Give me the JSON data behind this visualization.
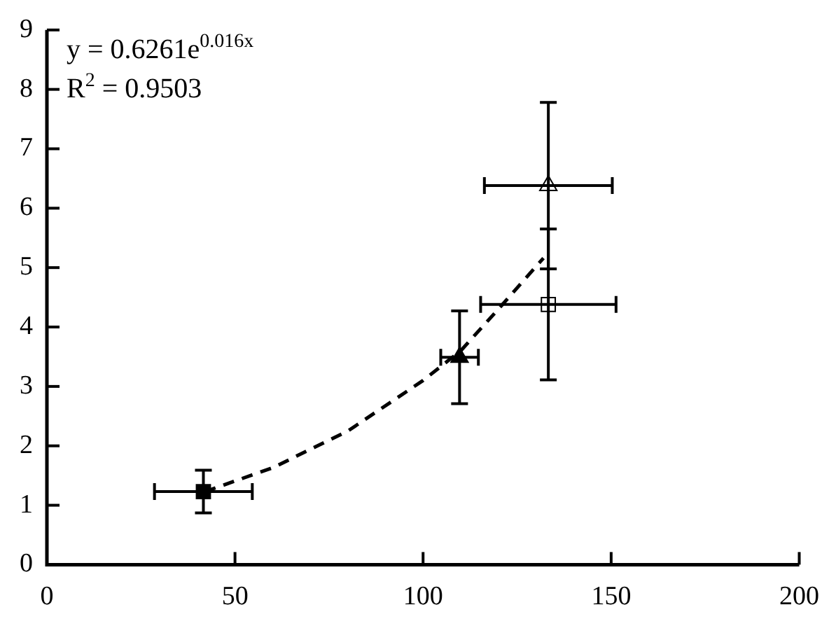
{
  "chart_data": {
    "type": "scatter",
    "xlim": [
      0,
      200
    ],
    "xticks": [
      0,
      50,
      100,
      150,
      200
    ],
    "ylim": [
      0,
      9
    ],
    "yticks": [
      0,
      1,
      2,
      3,
      4,
      5,
      6,
      7,
      8,
      9
    ],
    "grid": false,
    "legend": false,
    "annotations": [
      "y = 0.6261e$^{0.016x}$",
      "R$^{2}$ = 0.9503"
    ],
    "series": [
      {
        "type": "line",
        "color": "#000000",
        "line_style": "dashed",
        "marker": "none",
        "x": [
          42,
          60,
          80,
          100,
          110,
          120,
          132
        ],
        "values": [
          1.23,
          1.63,
          2.25,
          3.1,
          3.6,
          4.3,
          5.16
        ]
      },
      {
        "color": "#000000",
        "marker": "square",
        "x": [
          41.6
        ],
        "values": [
          1.23
        ],
        "errors": [
          0.36
        ],
        "xerrors": [
          13
        ]
      },
      {
        "color": "#000000",
        "marker": "triangle",
        "x": [
          109.7
        ],
        "values": [
          3.49
        ],
        "errors": [
          0.78
        ],
        "xerrors": [
          5
        ]
      },
      {
        "color": "#ffffff",
        "marker": "triangle",
        "x": [
          133.3
        ],
        "values": [
          6.38
        ],
        "errors": [
          1.4
        ],
        "xerrors": [
          17
        ]
      },
      {
        "color": "#ffffff",
        "marker": "square",
        "x": [
          133.3
        ],
        "values": [
          4.38
        ],
        "errors": [
          1.27
        ],
        "xerrors": [
          18
        ]
      }
    ]
  }
}
